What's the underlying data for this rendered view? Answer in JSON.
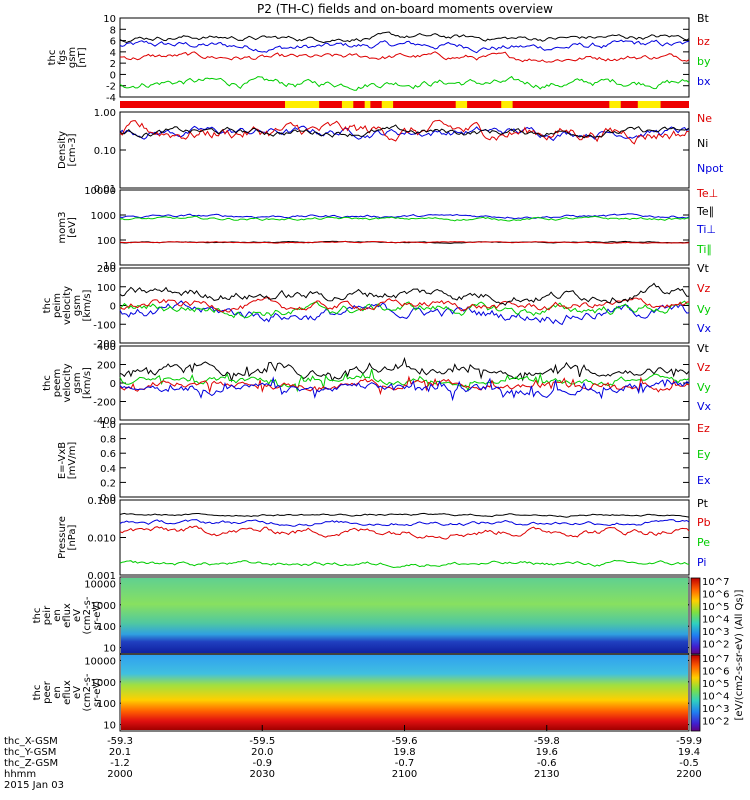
{
  "title": "P2 (TH-C) fields and on-board moments overview",
  "panels": [
    {
      "id": "fgs",
      "ylabel": [
        "thc",
        "fgs",
        "gsm",
        "[nT]"
      ],
      "ticks": [
        "10",
        "8",
        "6",
        "4",
        "2",
        "0",
        "-2",
        "-4"
      ],
      "tick_values": [
        10,
        8,
        6,
        4,
        2,
        0,
        -2,
        -4
      ],
      "ylim": [
        -4,
        10
      ],
      "scale": "linear",
      "legend": [
        {
          "label": "Bt",
          "color": "#000000"
        },
        {
          "label": "bz",
          "color": "#dd0000"
        },
        {
          "label": "by",
          "color": "#00cc00"
        },
        {
          "label": "bx",
          "color": "#0000dd"
        }
      ]
    },
    {
      "id": "density",
      "ylabel": [
        "Density",
        "[cm-3]"
      ],
      "ticks": [
        "1.00",
        "0.10",
        "0.01"
      ],
      "tick_values": [
        1.0,
        0.1,
        0.01
      ],
      "ylim": [
        0.01,
        1.0
      ],
      "scale": "log",
      "legend": [
        {
          "label": "Ne",
          "color": "#dd0000"
        },
        {
          "label": "Ni",
          "color": "#000000"
        },
        {
          "label": "Npot",
          "color": "#0000dd"
        }
      ]
    },
    {
      "id": "temp",
      "ylabel": [
        "mom3",
        "[eV]"
      ],
      "ticks": [
        "10000",
        "1000",
        "100",
        "10"
      ],
      "tick_values": [
        10000,
        1000,
        100,
        10
      ],
      "ylim": [
        10,
        10000
      ],
      "scale": "log",
      "legend": [
        {
          "label": "Te⊥",
          "color": "#dd0000"
        },
        {
          "label": "Te∥",
          "color": "#000000"
        },
        {
          "label": "Ti⊥",
          "color": "#0000dd"
        },
        {
          "label": "Ti∥",
          "color": "#00cc00"
        }
      ]
    },
    {
      "id": "vi",
      "ylabel": [
        "thc",
        "peim",
        "velocity",
        "gsm",
        "[km/s]"
      ],
      "ticks": [
        "200",
        "100",
        "0",
        "-100",
        "-200"
      ],
      "tick_values": [
        200,
        100,
        0,
        -100,
        -200
      ],
      "ylim": [
        -200,
        200
      ],
      "scale": "linear",
      "legend": [
        {
          "label": "Vt",
          "color": "#000000"
        },
        {
          "label": "Vz",
          "color": "#dd0000"
        },
        {
          "label": "Vy",
          "color": "#00cc00"
        },
        {
          "label": "Vx",
          "color": "#0000dd"
        }
      ]
    },
    {
      "id": "ve",
      "ylabel": [
        "thc",
        "peem",
        "velocity",
        "gsm",
        "[km/s]"
      ],
      "ticks": [
        "400",
        "200",
        "0",
        "-200",
        "-400"
      ],
      "tick_values": [
        400,
        200,
        0,
        -200,
        -400
      ],
      "ylim": [
        -400,
        400
      ],
      "scale": "linear",
      "legend": [
        {
          "label": "Vt",
          "color": "#000000"
        },
        {
          "label": "Vz",
          "color": "#dd0000"
        },
        {
          "label": "Vy",
          "color": "#00cc00"
        },
        {
          "label": "Vx",
          "color": "#0000dd"
        }
      ]
    },
    {
      "id": "efield",
      "ylabel": [
        "E=-VxB",
        "[mV/m]"
      ],
      "ticks": [
        "1.0",
        "0.8",
        "0.6",
        "0.4",
        "0.2",
        "0.0"
      ],
      "tick_values": [
        1.0,
        0.8,
        0.6,
        0.4,
        0.2,
        0.0
      ],
      "ylim": [
        0,
        1
      ],
      "scale": "linear",
      "legend": [
        {
          "label": "Ez",
          "color": "#dd0000"
        },
        {
          "label": "Ey",
          "color": "#00cc00"
        },
        {
          "label": "Ex",
          "color": "#0000dd"
        }
      ]
    },
    {
      "id": "pressure",
      "ylabel": [
        "Pressure",
        "[nPa]"
      ],
      "ticks": [
        "0.100",
        "0.010",
        "0.001"
      ],
      "tick_values": [
        0.1,
        0.01,
        0.001
      ],
      "ylim": [
        0.001,
        0.1
      ],
      "scale": "log",
      "legend": [
        {
          "label": "Pt",
          "color": "#000000"
        },
        {
          "label": "Pb",
          "color": "#dd0000"
        },
        {
          "label": "Pe",
          "color": "#00cc00"
        },
        {
          "label": "Pi",
          "color": "#0000dd"
        }
      ]
    },
    {
      "id": "ion_spec",
      "ylabel": [
        "thc",
        "peir",
        "en",
        "eflux",
        "eV",
        "(cm2-s-",
        "sr-eV)"
      ],
      "ticks": [
        "10000",
        "1000",
        "100",
        "10"
      ],
      "tick_values": [
        10000,
        1000,
        100,
        10
      ],
      "ylim": [
        5,
        20000
      ],
      "scale": "log"
    },
    {
      "id": "ele_spec",
      "ylabel": [
        "thc",
        "peer",
        "en",
        "eflux",
        "eV",
        "(cm2-s-",
        "sr-eV)"
      ],
      "ticks": [
        "10000",
        "1000",
        "100",
        "10"
      ],
      "tick_values": [
        10000,
        1000,
        100,
        10
      ],
      "ylim": [
        5,
        20000
      ],
      "scale": "log"
    }
  ],
  "colorbar": {
    "ticks": [
      "10^7",
      "10^6",
      "10^5",
      "10^4",
      "10^3",
      "10^2",
      "10^7",
      "10^6",
      "10^5",
      "10^4",
      "10^3",
      "10^2"
    ],
    "label": "[eV/(cm2-s-sr-eV) (All Qs)]"
  },
  "xaxis": {
    "rows": [
      {
        "label": "thc_X-GSM",
        "values": [
          "-59.3",
          "-59.5",
          "-59.6",
          "-59.8",
          "-59.9"
        ]
      },
      {
        "label": "thc_Y-GSM",
        "values": [
          "20.1",
          "20.0",
          "19.8",
          "19.6",
          "19.4"
        ]
      },
      {
        "label": "thc_Z-GSM",
        "values": [
          "-1.2",
          "-0.9",
          "-0.7",
          "-0.6",
          "-0.5"
        ]
      },
      {
        "label": "hhmm",
        "values": [
          "2000",
          "2030",
          "2100",
          "2130",
          "2200"
        ]
      }
    ],
    "date": "2015 Jan 03"
  },
  "chart_data": {
    "type": "line",
    "title": "P2 (TH-C) fields and on-board moments overview",
    "time_hhmm": [
      "2000",
      "2030",
      "2100",
      "2130",
      "2200"
    ],
    "mode_bar": {
      "colors": [
        "#ee0000",
        "#ffee00"
      ],
      "yellow_segments_fraction": [
        [
          0.29,
          0.35
        ],
        [
          0.39,
          0.41
        ],
        [
          0.43,
          0.44
        ],
        [
          0.46,
          0.48
        ],
        [
          0.59,
          0.61
        ],
        [
          0.67,
          0.69
        ],
        [
          0.86,
          0.88
        ],
        [
          0.91,
          0.95
        ]
      ]
    },
    "series_summary": {
      "fgs": {
        "Bt": 6.5,
        "bz": 3,
        "by": -1.5,
        "bx": 5
      },
      "density": {
        "Ne": 0.3,
        "Ni": 0.3,
        "Npot": 0.3
      },
      "temp": {
        "Te_perp": 80,
        "Te_par": 80,
        "Ti_perp": 900,
        "Ti_par": 700
      },
      "vi": {
        "Vt": 60,
        "Vz": 0,
        "Vy": -20,
        "Vx": -40
      },
      "ve": {
        "Vt": 130,
        "Vz": -20,
        "Vy": 20,
        "Vx": -60
      },
      "pressure": {
        "Pt": 0.04,
        "Pb": 0.015,
        "Pe": 0.002,
        "Pi": 0.025
      }
    }
  }
}
